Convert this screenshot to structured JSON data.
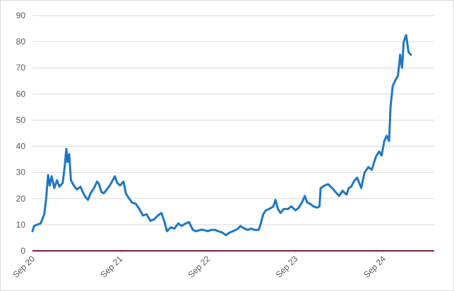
{
  "chart_data": {
    "type": "line",
    "title": "",
    "xlabel": "",
    "ylabel": "",
    "ylim": [
      0,
      90
    ],
    "y_ticks": [
      "0",
      "10",
      "20",
      "30",
      "40",
      "50",
      "60",
      "70",
      "80",
      "90"
    ],
    "x_ticks": [
      "Sep 20",
      "Sep 21",
      "Sep 22",
      "Sep 23",
      "Sep 24"
    ],
    "x_tick_dates": [
      "2020-09-01",
      "2021-09-01",
      "2022-09-01",
      "2023-09-01",
      "2024-09-01"
    ],
    "x_range": [
      "2020-09-01",
      "2025-04-01"
    ],
    "grid": "horizontal",
    "legend": "none",
    "colors": {
      "line": "#1f77c4",
      "zero_line": "#7f1f3a",
      "grid": "#d9d9d9",
      "axis_text": "#595959"
    },
    "series": [
      {
        "points": [
          [
            "2020-09-01",
            7.5
          ],
          [
            "2020-09-08",
            9.5
          ],
          [
            "2020-09-20",
            10
          ],
          [
            "2020-10-05",
            10.5
          ],
          [
            "2020-10-20",
            14
          ],
          [
            "2020-10-28",
            20
          ],
          [
            "2020-11-05",
            29
          ],
          [
            "2020-11-12",
            25
          ],
          [
            "2020-11-20",
            28.5
          ],
          [
            "2020-12-01",
            24
          ],
          [
            "2020-12-12",
            27
          ],
          [
            "2020-12-22",
            24.5
          ],
          [
            "2021-01-05",
            26
          ],
          [
            "2021-01-14",
            33
          ],
          [
            "2021-01-20",
            39
          ],
          [
            "2021-01-25",
            34
          ],
          [
            "2021-02-01",
            37
          ],
          [
            "2021-02-08",
            27
          ],
          [
            "2021-02-20",
            25
          ],
          [
            "2021-03-05",
            23.5
          ],
          [
            "2021-03-20",
            24.5
          ],
          [
            "2021-04-01",
            22
          ],
          [
            "2021-04-10",
            20.5
          ],
          [
            "2021-04-20",
            19.5
          ],
          [
            "2021-05-01",
            22
          ],
          [
            "2021-05-15",
            24
          ],
          [
            "2021-05-28",
            26.5
          ],
          [
            "2021-06-05",
            25.5
          ],
          [
            "2021-06-15",
            22.5
          ],
          [
            "2021-06-25",
            22
          ],
          [
            "2021-07-08",
            23.5
          ],
          [
            "2021-07-20",
            25
          ],
          [
            "2021-08-01",
            27
          ],
          [
            "2021-08-10",
            28.5
          ],
          [
            "2021-08-20",
            26
          ],
          [
            "2021-09-01",
            25
          ],
          [
            "2021-09-15",
            26.5
          ],
          [
            "2021-09-25",
            22
          ],
          [
            "2021-10-05",
            20.5
          ],
          [
            "2021-10-20",
            18.5
          ],
          [
            "2021-11-05",
            18
          ],
          [
            "2021-11-20",
            16
          ],
          [
            "2021-12-05",
            13.5
          ],
          [
            "2021-12-20",
            14
          ],
          [
            "2022-01-05",
            11.5
          ],
          [
            "2022-01-20",
            12
          ],
          [
            "2022-02-05",
            13.5
          ],
          [
            "2022-02-20",
            14.5
          ],
          [
            "2022-03-05",
            11
          ],
          [
            "2022-03-15",
            7.5
          ],
          [
            "2022-04-01",
            9
          ],
          [
            "2022-04-15",
            8.5
          ],
          [
            "2022-05-01",
            10.5
          ],
          [
            "2022-05-15",
            9.5
          ],
          [
            "2022-06-01",
            10.5
          ],
          [
            "2022-06-15",
            11
          ],
          [
            "2022-07-01",
            8
          ],
          [
            "2022-07-15",
            7.5
          ],
          [
            "2022-08-01",
            8
          ],
          [
            "2022-08-15",
            8
          ],
          [
            "2022-09-01",
            7.5
          ],
          [
            "2022-09-15",
            8
          ],
          [
            "2022-10-01",
            8
          ],
          [
            "2022-10-15",
            7.5
          ],
          [
            "2022-11-01",
            7
          ],
          [
            "2022-11-15",
            6
          ],
          [
            "2022-12-01",
            7
          ],
          [
            "2022-12-15",
            7.5
          ],
          [
            "2023-01-05",
            8.5
          ],
          [
            "2023-01-15",
            9.5
          ],
          [
            "2023-02-01",
            8.5
          ],
          [
            "2023-02-15",
            8
          ],
          [
            "2023-03-01",
            8.5
          ],
          [
            "2023-03-15",
            8
          ],
          [
            "2023-04-01",
            8
          ],
          [
            "2023-04-10",
            10.5
          ],
          [
            "2023-04-20",
            14
          ],
          [
            "2023-05-01",
            15.5
          ],
          [
            "2023-05-15",
            16
          ],
          [
            "2023-06-01",
            17
          ],
          [
            "2023-06-10",
            19.5
          ],
          [
            "2023-06-20",
            16
          ],
          [
            "2023-07-01",
            14.5
          ],
          [
            "2023-07-15",
            16
          ],
          [
            "2023-08-01",
            16
          ],
          [
            "2023-08-15",
            17
          ],
          [
            "2023-09-01",
            15.5
          ],
          [
            "2023-09-15",
            16.5
          ],
          [
            "2023-10-01",
            19
          ],
          [
            "2023-10-10",
            21
          ],
          [
            "2023-10-20",
            18.5
          ],
          [
            "2023-11-01",
            18
          ],
          [
            "2023-11-15",
            17
          ],
          [
            "2023-12-01",
            16.5
          ],
          [
            "2023-12-10",
            17
          ],
          [
            "2023-12-15",
            24
          ],
          [
            "2024-01-01",
            25
          ],
          [
            "2024-01-15",
            25.5
          ],
          [
            "2024-02-01",
            24
          ],
          [
            "2024-02-15",
            22.5
          ],
          [
            "2024-03-01",
            21
          ],
          [
            "2024-03-15",
            23
          ],
          [
            "2024-04-01",
            21.5
          ],
          [
            "2024-04-10",
            24
          ],
          [
            "2024-04-20",
            24.5
          ],
          [
            "2024-05-01",
            26.5
          ],
          [
            "2024-05-15",
            28
          ],
          [
            "2024-06-01",
            24
          ],
          [
            "2024-06-15",
            30
          ],
          [
            "2024-07-01",
            32
          ],
          [
            "2024-07-15",
            31
          ],
          [
            "2024-08-01",
            36
          ],
          [
            "2024-08-15",
            38
          ],
          [
            "2024-08-25",
            36.5
          ],
          [
            "2024-09-05",
            42
          ],
          [
            "2024-09-15",
            44
          ],
          [
            "2024-09-25",
            42
          ],
          [
            "2024-10-01",
            55
          ],
          [
            "2024-10-10",
            63
          ],
          [
            "2024-10-20",
            65
          ],
          [
            "2024-11-01",
            67
          ],
          [
            "2024-11-10",
            75
          ],
          [
            "2024-11-18",
            70
          ],
          [
            "2024-11-25",
            80
          ],
          [
            "2024-12-05",
            82.5
          ],
          [
            "2024-12-15",
            76
          ],
          [
            "2024-12-25",
            75
          ]
        ]
      }
    ]
  }
}
